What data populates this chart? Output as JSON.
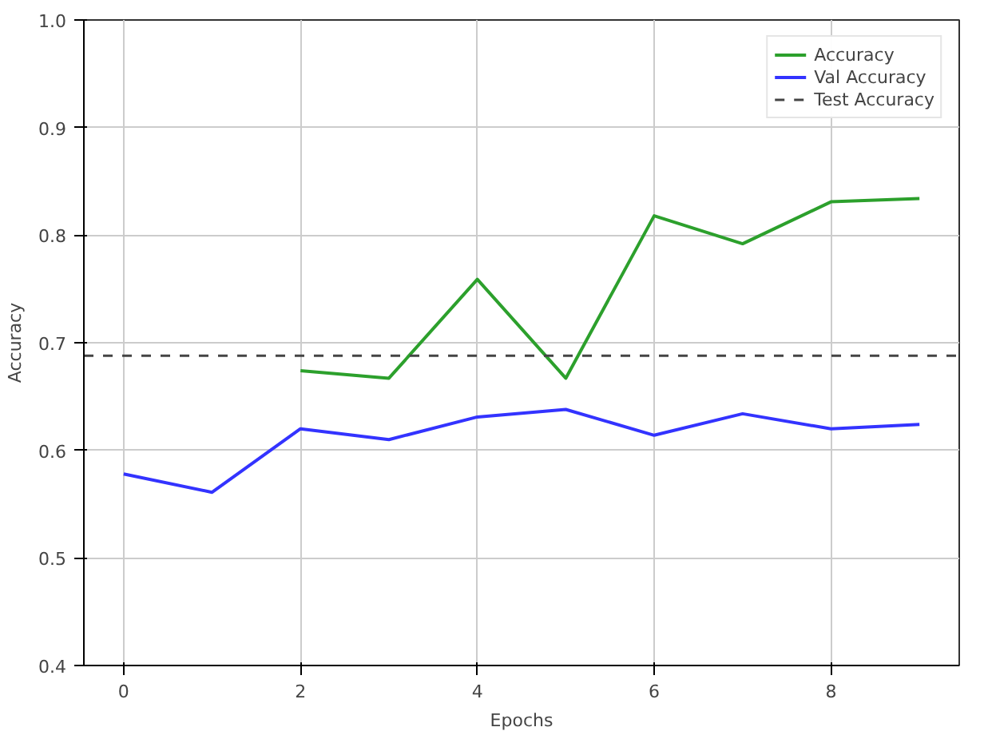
{
  "chart_data": {
    "type": "line",
    "xlabel": "Epochs",
    "ylabel": "Accuracy",
    "x": [
      0,
      1,
      2,
      3,
      4,
      5,
      6,
      7,
      8,
      9
    ],
    "series": [
      {
        "name": "Accuracy",
        "color": "#2ca02c",
        "values": [
          null,
          null,
          0.674,
          0.667,
          0.759,
          0.667,
          0.818,
          0.792,
          0.831,
          0.834
        ]
      },
      {
        "name": "Val Accuracy",
        "color": "#3333ff",
        "values": [
          0.578,
          0.561,
          0.62,
          0.61,
          0.631,
          0.638,
          0.614,
          0.634,
          0.62,
          0.624
        ]
      }
    ],
    "ref_lines": [
      {
        "axis": "y",
        "value": 0.688,
        "label": "Test Accuracy",
        "color": "#444444",
        "line_style": "dashed"
      }
    ],
    "xlim": [
      -0.45,
      9.45
    ],
    "ylim": [
      0.4,
      1.0
    ],
    "xticks": [
      0,
      2,
      4,
      6,
      8
    ],
    "yticks": [
      0.4,
      0.5,
      0.6,
      0.7,
      0.8,
      0.9,
      {
        "value": 1.0,
        "label": "1.0"
      }
    ],
    "grid": true,
    "legend": "top right",
    "line_style": "solid",
    "marker": "none"
  }
}
